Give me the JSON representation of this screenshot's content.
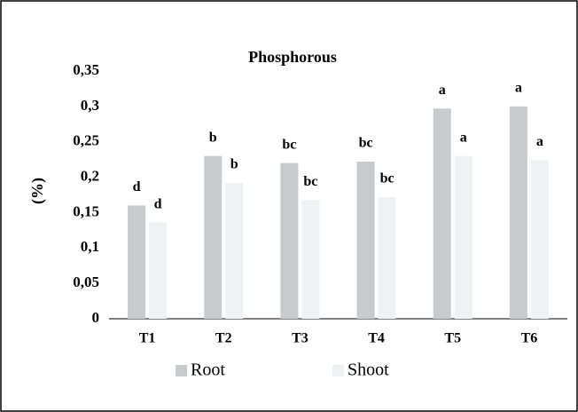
{
  "chart_data": {
    "type": "bar",
    "title": "Phosphorous",
    "y_label": "(%)",
    "categories": [
      "T1",
      "T2",
      "T3",
      "T4",
      "T5",
      "T6"
    ],
    "series": [
      {
        "name": "Root",
        "color": "#c9cacc",
        "values": [
          0.16,
          0.23,
          0.22,
          0.222,
          0.297,
          0.3
        ],
        "annotations": [
          "d",
          "b",
          "bc",
          "bc",
          "a",
          "a"
        ]
      },
      {
        "name": "Shoot",
        "color": "#f0f1f3",
        "values": [
          0.136,
          0.192,
          0.168,
          0.172,
          0.23,
          0.224
        ],
        "annotations": [
          "d",
          "b",
          "bc",
          "bc",
          "a",
          "a"
        ]
      }
    ],
    "ylim": [
      0,
      0.35
    ],
    "yticks": [
      0,
      {
        "value": 0.05,
        "label": "0,05"
      },
      {
        "value": 0.1,
        "label": "0,1"
      },
      {
        "value": 0.15,
        "label": "0,15"
      },
      {
        "value": 0.2,
        "label": "0,2"
      },
      {
        "value": 0.25,
        "label": "0,25"
      },
      {
        "value": 0.3,
        "label": "0,3"
      },
      {
        "value": 0.35,
        "label": "0,35"
      }
    ],
    "grid": false,
    "legend": "bottom"
  }
}
